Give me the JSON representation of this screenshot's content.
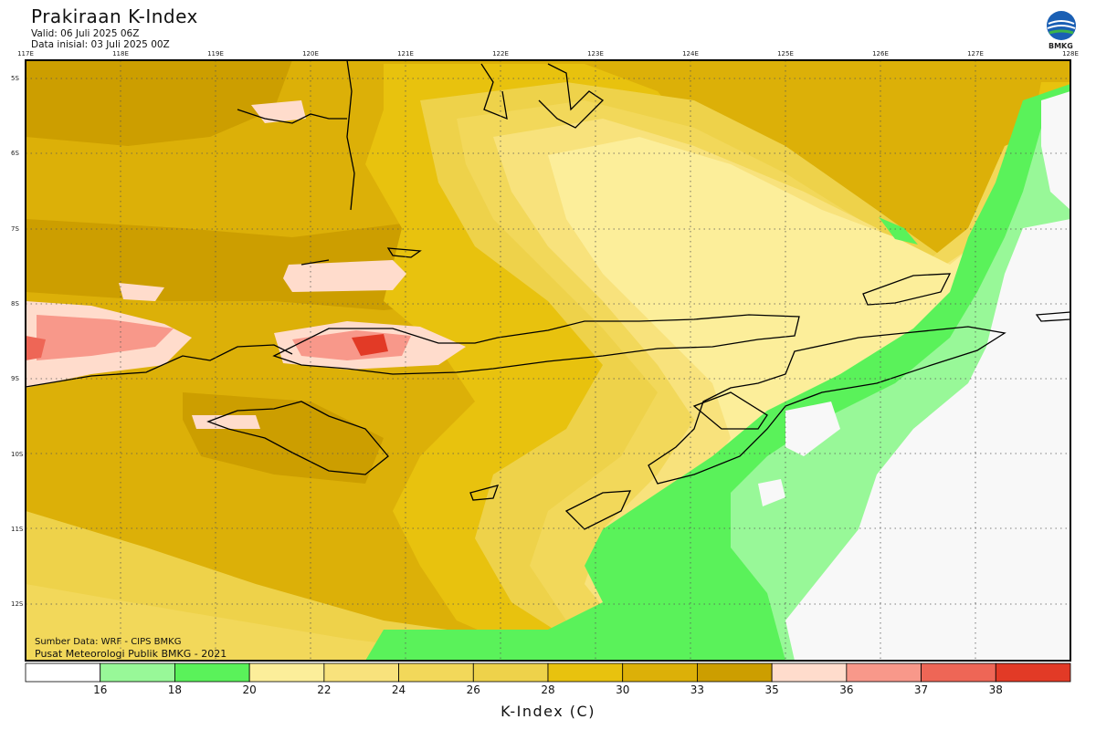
{
  "header": {
    "title": "Prakiraan K-Index",
    "valid": "Valid: 06 Juli 2025 06Z",
    "initial": "Data inisial: 03 Juli 2025 00Z",
    "logo_text": "BMKG"
  },
  "axes": {
    "lon_labels": [
      "117E",
      "118E",
      "119E",
      "120E",
      "121E",
      "122E",
      "123E",
      "124E",
      "125E",
      "126E",
      "127E",
      "128E"
    ],
    "lat_labels": [
      "5S",
      "6S",
      "7S",
      "8S",
      "9S",
      "10S",
      "11S",
      "12S"
    ]
  },
  "footer": {
    "source": "Sumber Data: WRF - CIPS BMKG",
    "center": "Pusat Meteorologi Publik BMKG - 2021"
  },
  "colorbar": {
    "title": "K-Index (C)",
    "ticks": [
      "16",
      "18",
      "20",
      "22",
      "24",
      "26",
      "28",
      "30",
      "33",
      "35",
      "36",
      "37",
      "38"
    ],
    "colors": [
      "#ffffff",
      "#98f898",
      "#5af25a",
      "#fcee9a",
      "#f8e27c",
      "#f2d85a",
      "#eed24a",
      "#e8c20e",
      "#dcb008",
      "#cc9e00",
      "#ffdccc",
      "#f8988a",
      "#ee6656",
      "#e23a26"
    ]
  }
}
